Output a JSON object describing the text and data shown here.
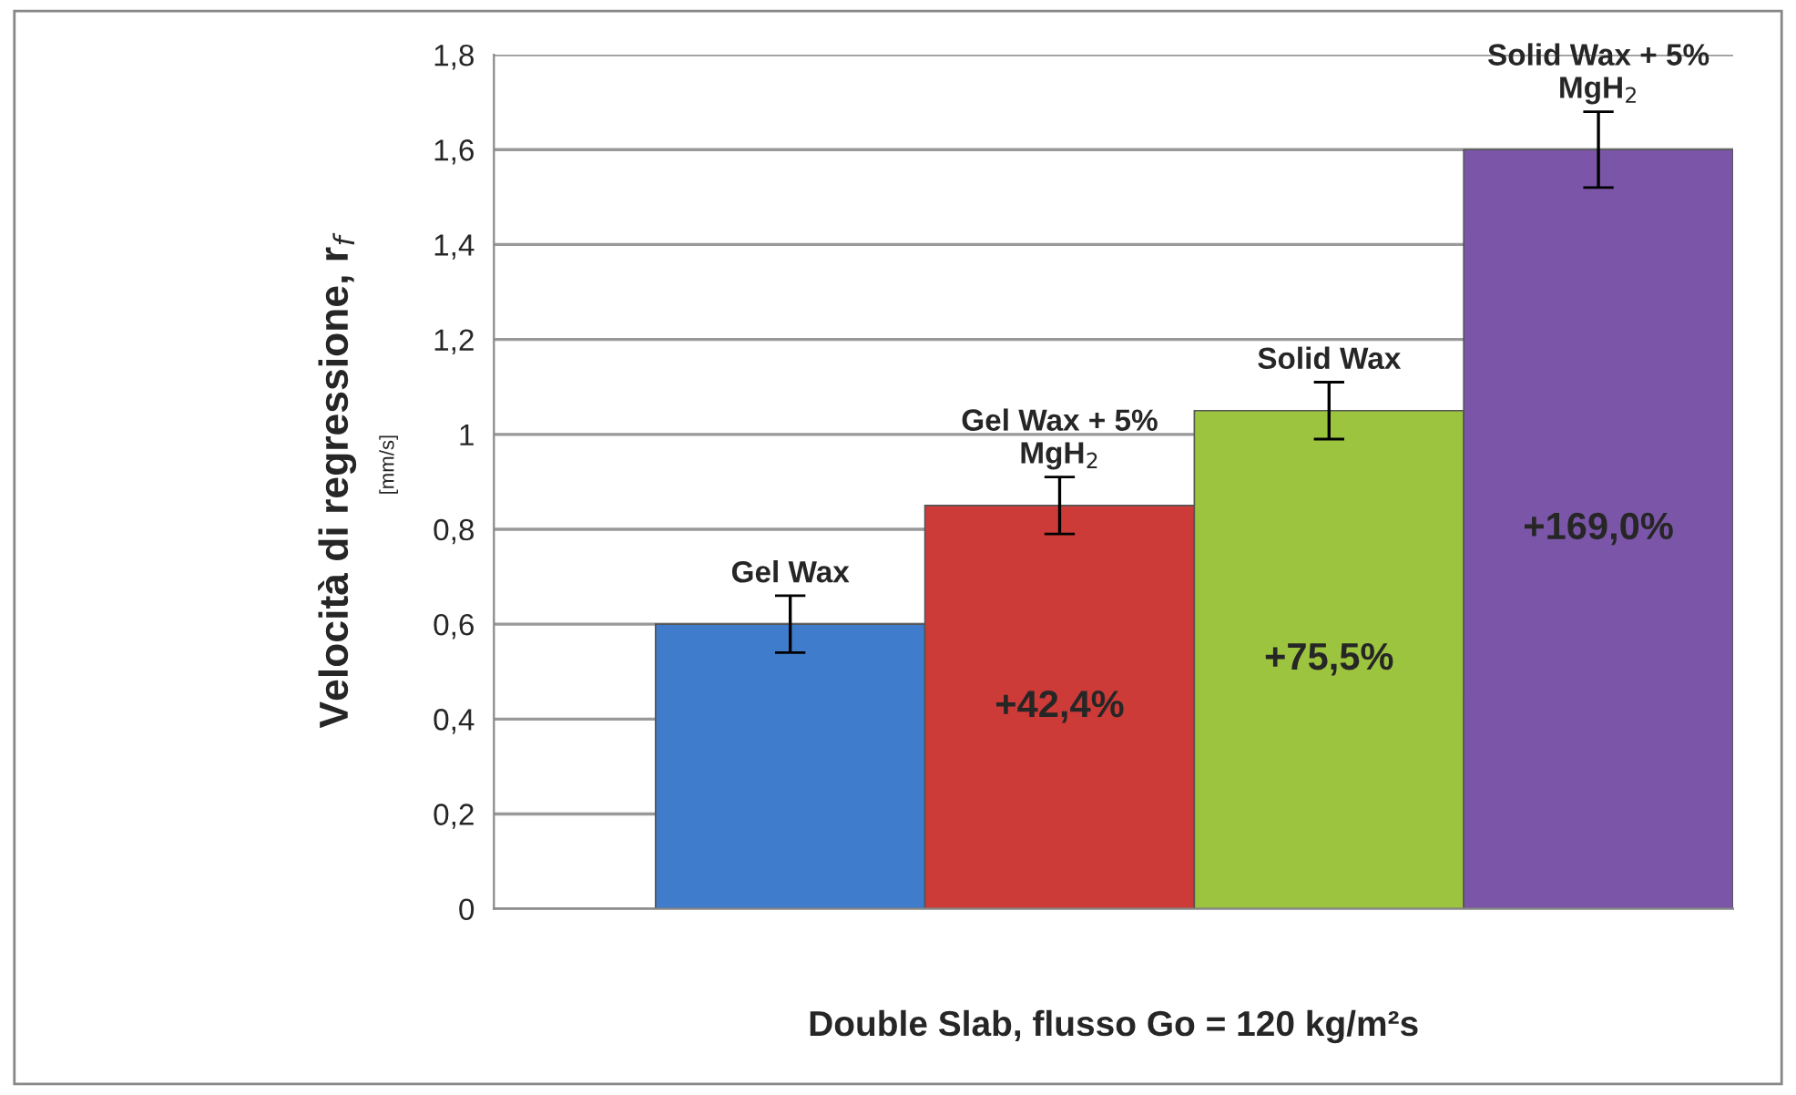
{
  "chart_data": {
    "type": "bar",
    "categories": [
      "Gel Wax",
      "Gel Wax + 5%\nMgH$_{2}$",
      "Solid Wax",
      "Solid Wax + 5%\nMgH$_{2}$"
    ],
    "values": [
      0.6,
      0.85,
      1.05,
      1.6
    ],
    "errors": [
      0.06,
      0.06,
      0.06,
      0.08
    ],
    "colors": [
      "#3f7ccc",
      "#cc3b37",
      "#9dc43f",
      "#7b56a8"
    ],
    "ylabel": "Velocità di regressione, r$_{f}$",
    "xlabel": "Double Slab, flusso Go = 120 kg/m²s",
    "annotations": [
      "[mm/s]",
      "+42,4%",
      "+75,5%",
      "+169,0%"
    ],
    "ylim": [
      0,
      1.8
    ],
    "yticks": [
      0,
      {
        "value": 0.2,
        "label": "0,2"
      },
      {
        "value": 0.4,
        "label": "0,4"
      },
      {
        "value": 0.6,
        "label": "0,6"
      },
      {
        "value": 0.8,
        "label": "0,8"
      },
      1,
      {
        "value": 1.2,
        "label": "1,2"
      },
      {
        "value": 1.4,
        "label": "1,4"
      },
      {
        "value": 1.6,
        "label": "1,6"
      },
      {
        "value": 1.8,
        "label": "1,8"
      }
    ],
    "grid": "y",
    "tick_labels": "y"
  }
}
